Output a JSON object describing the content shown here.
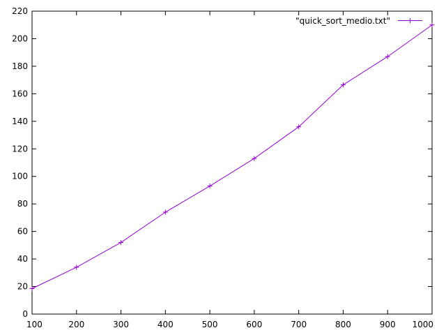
{
  "chart_data": {
    "type": "line",
    "title": "",
    "xlabel": "",
    "ylabel": "",
    "xlim": [
      100,
      1000
    ],
    "ylim": [
      0,
      220
    ],
    "xticks": [
      100,
      200,
      300,
      400,
      500,
      600,
      700,
      800,
      900,
      1000
    ],
    "yticks": [
      0,
      20,
      40,
      60,
      80,
      100,
      120,
      140,
      160,
      180,
      200,
      220
    ],
    "grid": false,
    "legend": "top-right",
    "series": [
      {
        "name": "\"quick_sort_medio.txt\"",
        "color": "#9400d3",
        "marker": "plus",
        "x": [
          100,
          200,
          300,
          400,
          500,
          600,
          700,
          800,
          900,
          1000
        ],
        "y": [
          18.5,
          34,
          52,
          74,
          93,
          113,
          136,
          166.5,
          187,
          210
        ]
      }
    ]
  }
}
